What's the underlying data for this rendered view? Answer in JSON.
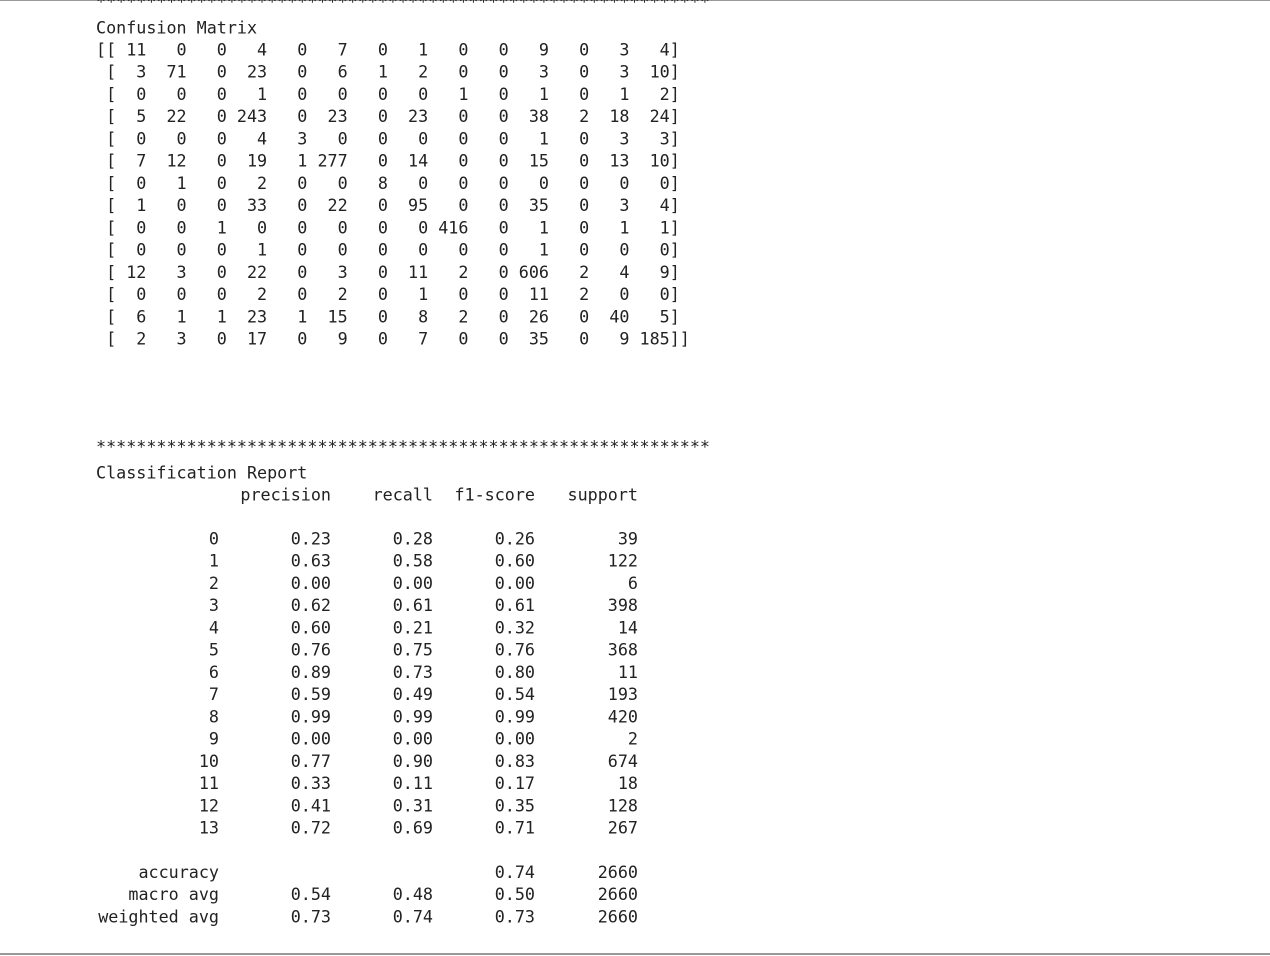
{
  "separators": [
    "*************************************************************",
    "*************************************************************"
  ],
  "confusion_matrix": {
    "title": "Confusion Matrix",
    "rows": [
      "[[ 11   0   0   4   0   7   0   1   0   0   9   0   3   4]",
      " [  3  71   0  23   0   6   1   2   0   0   3   0   3  10]",
      " [  0   0   0   1   0   0   0   0   1   0   1   0   1   2]",
      " [  5  22   0 243   0  23   0  23   0   0  38   2  18  24]",
      " [  0   0   0   4   3   0   0   0   0   0   1   0   3   3]",
      " [  7  12   0  19   1 277   0  14   0   0  15   0  13  10]",
      " [  0   1   0   2   0   0   8   0   0   0   0   0   0   0]",
      " [  1   0   0  33   0  22   0  95   0   0  35   0   3   4]",
      " [  0   0   1   0   0   0   0   0 416   0   1   0   1   1]",
      " [  0   0   0   1   0   0   0   0   0   0   1   0   0   0]",
      " [ 12   3   0  22   0   3   0  11   2   0 606   2   4   9]",
      " [  0   0   0   2   0   2   0   1   0   0  11   2   0   0]",
      " [  6   1   1  23   1  15   0   8   2   0  26   0  40   5]",
      " [  2   3   0  17   0   9   0   7   0   0  35   0   9 185]]"
    ]
  },
  "classification_report": {
    "title": "Classification Report",
    "columns": [
      "precision",
      "recall",
      "f1-score",
      "support"
    ],
    "rows": [
      {
        "label": "0",
        "precision": "0.23",
        "recall": "0.28",
        "f1-score": "0.26",
        "support": "39"
      },
      {
        "label": "1",
        "precision": "0.63",
        "recall": "0.58",
        "f1-score": "0.60",
        "support": "122"
      },
      {
        "label": "2",
        "precision": "0.00",
        "recall": "0.00",
        "f1-score": "0.00",
        "support": "6"
      },
      {
        "label": "3",
        "precision": "0.62",
        "recall": "0.61",
        "f1-score": "0.61",
        "support": "398"
      },
      {
        "label": "4",
        "precision": "0.60",
        "recall": "0.21",
        "f1-score": "0.32",
        "support": "14"
      },
      {
        "label": "5",
        "precision": "0.76",
        "recall": "0.75",
        "f1-score": "0.76",
        "support": "368"
      },
      {
        "label": "6",
        "precision": "0.89",
        "recall": "0.73",
        "f1-score": "0.80",
        "support": "11"
      },
      {
        "label": "7",
        "precision": "0.59",
        "recall": "0.49",
        "f1-score": "0.54",
        "support": "193"
      },
      {
        "label": "8",
        "precision": "0.99",
        "recall": "0.99",
        "f1-score": "0.99",
        "support": "420"
      },
      {
        "label": "9",
        "precision": "0.00",
        "recall": "0.00",
        "f1-score": "0.00",
        "support": "2"
      },
      {
        "label": "10",
        "precision": "0.77",
        "recall": "0.90",
        "f1-score": "0.83",
        "support": "674"
      },
      {
        "label": "11",
        "precision": "0.33",
        "recall": "0.11",
        "f1-score": "0.17",
        "support": "18"
      },
      {
        "label": "12",
        "precision": "0.41",
        "recall": "0.31",
        "f1-score": "0.35",
        "support": "128"
      },
      {
        "label": "13",
        "precision": "0.72",
        "recall": "0.69",
        "f1-score": "0.71",
        "support": "267"
      }
    ],
    "summary": [
      {
        "label": "accuracy",
        "f1-score": "0.74",
        "support": "2660"
      },
      {
        "label": "macro avg",
        "precision": "0.54",
        "recall": "0.48",
        "f1-score": "0.50",
        "support": "2660"
      },
      {
        "label": "weighted avg",
        "precision": "0.73",
        "recall": "0.74",
        "f1-score": "0.73",
        "support": "2660"
      }
    ]
  }
}
